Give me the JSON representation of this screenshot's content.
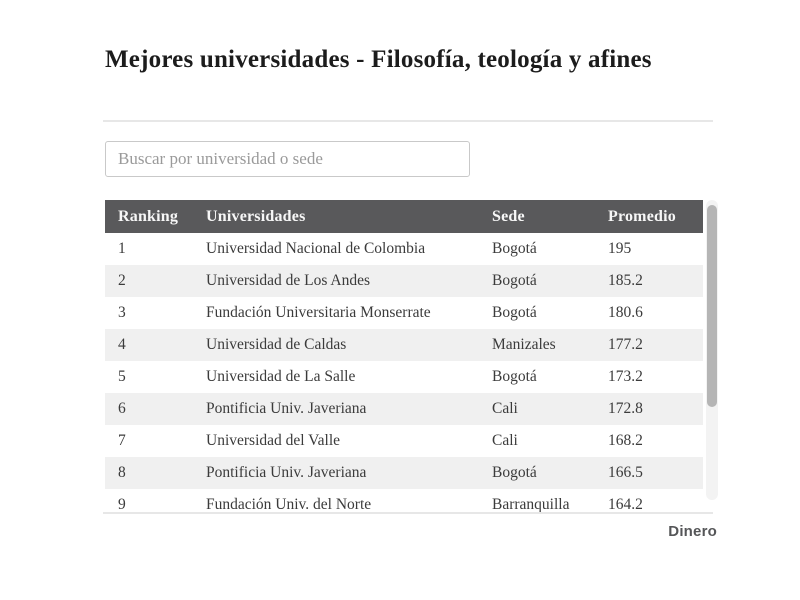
{
  "title": "Mejores universidades - Filosofía, teología y afines",
  "search": {
    "placeholder": "Buscar por universidad o sede"
  },
  "table": {
    "columns": [
      "Ranking",
      "Universidades",
      "Sede",
      "Promedio"
    ],
    "rows": [
      {
        "ranking": "1",
        "universidad": "Universidad Nacional de Colombia",
        "sede": "Bogotá",
        "promedio": "195"
      },
      {
        "ranking": "2",
        "universidad": "Universidad de Los Andes",
        "sede": "Bogotá",
        "promedio": "185.2"
      },
      {
        "ranking": "3",
        "universidad": "Fundación Universitaria Monserrate",
        "sede": "Bogotá",
        "promedio": "180.6"
      },
      {
        "ranking": "4",
        "universidad": "Universidad de Caldas",
        "sede": "Manizales",
        "promedio": "177.2"
      },
      {
        "ranking": "5",
        "universidad": "Universidad de La Salle",
        "sede": "Bogotá",
        "promedio": "173.2"
      },
      {
        "ranking": "6",
        "universidad": "Pontificia Univ. Javeriana",
        "sede": "Cali",
        "promedio": "172.8"
      },
      {
        "ranking": "7",
        "universidad": "Universidad del Valle",
        "sede": "Cali",
        "promedio": "168.2"
      },
      {
        "ranking": "8",
        "universidad": "Pontificia Univ. Javeriana",
        "sede": "Bogotá",
        "promedio": "166.5"
      },
      {
        "ranking": "9",
        "universidad": "Fundación Univ. del Norte",
        "sede": "Barranquilla",
        "promedio": "164.2"
      }
    ]
  },
  "footer": {
    "brand": "Dinero"
  },
  "colors": {
    "header_bg": "#59595b",
    "header_text": "#f7f7f7",
    "zebra_row": "#f0f0f0",
    "row_text": "#3b3b3b",
    "title_text": "#1c1c1c",
    "brand_text": "#555658",
    "divider": "#e7e7e7",
    "scrollbar_thumb": "#b5b5b5",
    "scrollbar_track": "#f3f3f3"
  }
}
